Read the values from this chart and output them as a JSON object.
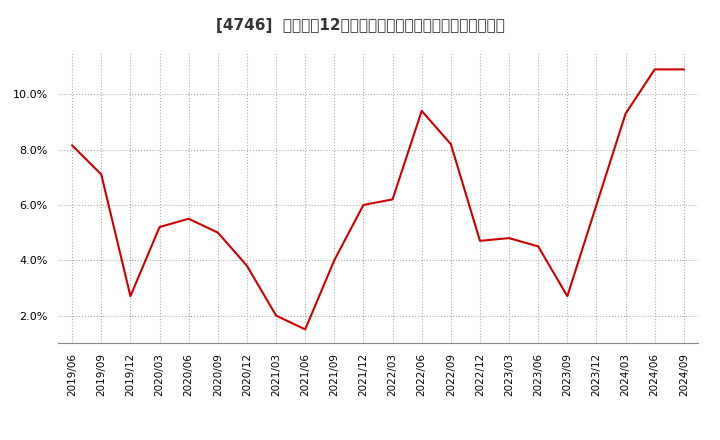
{
  "title": "[4746]  売上高の12か月移動合計の対前年同期増減率の推移",
  "line_color": "#cc0000",
  "background_color": "#ffffff",
  "plot_background_color": "#ffffff",
  "grid_color": "#aaaaaa",
  "dates": [
    "2019/06",
    "2019/09",
    "2019/12",
    "2020/03",
    "2020/06",
    "2020/09",
    "2020/12",
    "2021/03",
    "2021/06",
    "2021/09",
    "2021/12",
    "2022/03",
    "2022/06",
    "2022/09",
    "2022/12",
    "2023/03",
    "2023/06",
    "2023/09",
    "2023/12",
    "2024/03",
    "2024/06",
    "2024/09"
  ],
  "values": [
    0.0815,
    0.071,
    0.027,
    0.052,
    0.055,
    0.05,
    0.038,
    0.02,
    0.015,
    0.04,
    0.06,
    0.062,
    0.094,
    0.082,
    0.047,
    0.048,
    0.045,
    0.027,
    0.06,
    0.093,
    0.109,
    0.109
  ],
  "yticks": [
    0.02,
    0.04,
    0.06,
    0.08,
    0.1
  ],
  "ylim": [
    0.01,
    0.115
  ],
  "xtick_labels": [
    "2019/06",
    "2019/09",
    "2019/12",
    "2020/03",
    "2020/06",
    "2020/09",
    "2020/12",
    "2021/03",
    "2021/06",
    "2021/09",
    "2021/12",
    "2022/03",
    "2022/06",
    "2022/09",
    "2022/12",
    "2023/03",
    "2023/06",
    "2023/09",
    "2023/12",
    "2024/03",
    "2024/06",
    "2024/09"
  ],
  "title_fontsize": 11,
  "tick_fontsize": 7.5,
  "ytick_fontsize": 8
}
